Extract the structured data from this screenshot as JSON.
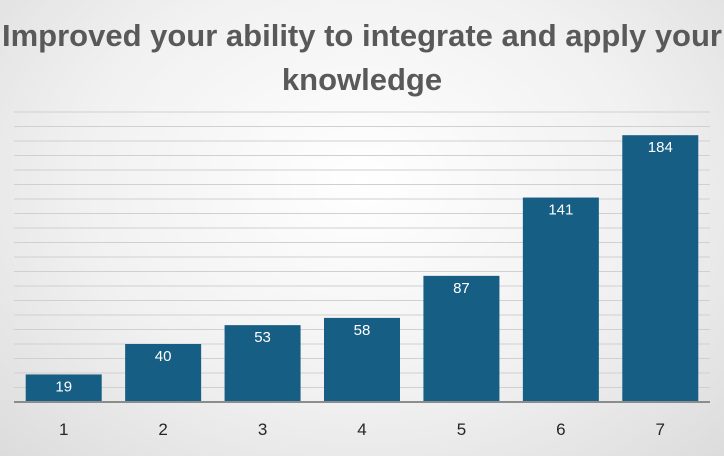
{
  "chart_data": {
    "type": "bar",
    "title": "Improved your ability to integrate and apply your knowledge",
    "categories": [
      "1",
      "2",
      "3",
      "4",
      "5",
      "6",
      "7"
    ],
    "values": [
      19,
      40,
      53,
      58,
      87,
      141,
      184
    ],
    "xlabel": "",
    "ylabel": "",
    "ylim": [
      0,
      200
    ],
    "grid": true,
    "legend": "none",
    "colors": {
      "bar": "#165E83",
      "grid": "#d0d0d0",
      "axis": "#8c8c8c"
    }
  }
}
